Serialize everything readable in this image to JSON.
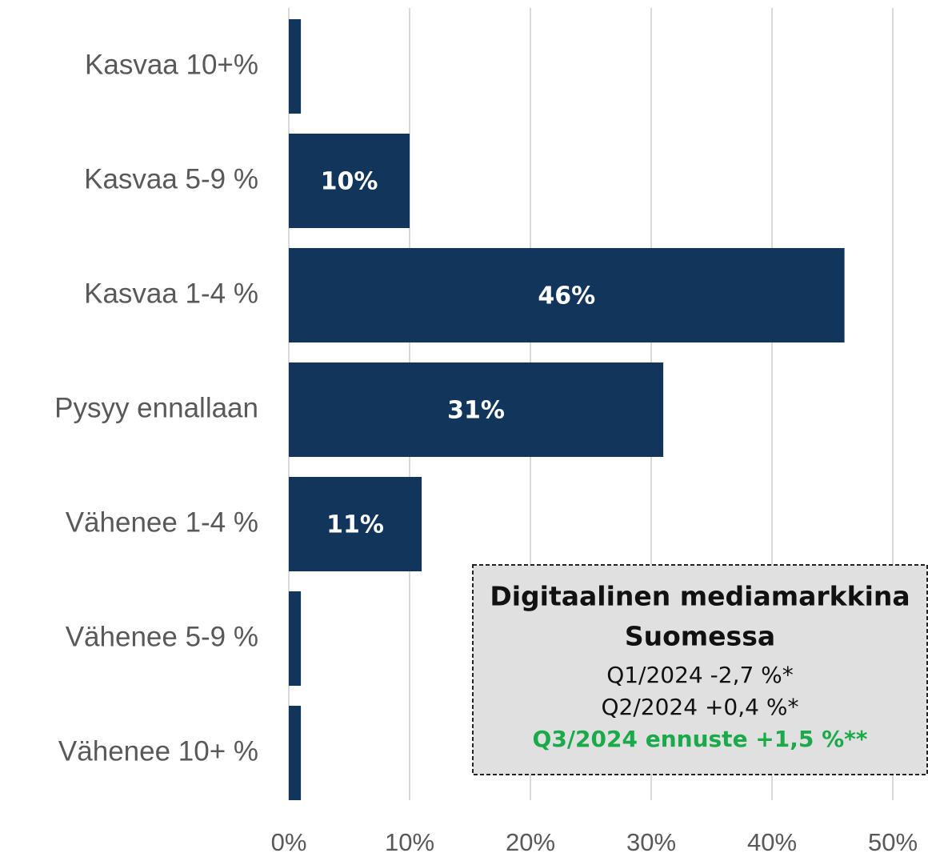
{
  "chart_data": {
    "type": "barh",
    "categories": [
      "Kasvaa 10+%",
      "Kasvaa 5-9 %",
      "Kasvaa 1-4 %",
      "Pysyy ennallaan",
      "Vähenee 1-4 %",
      "Vähenee 5-9 %",
      "Vähenee 10+ %"
    ],
    "values": [
      1,
      10,
      46,
      31,
      11,
      1,
      1
    ],
    "value_labels": [
      null,
      "10%",
      "46%",
      "31%",
      "11%",
      null,
      null
    ],
    "color": "#12355b",
    "xlim": [
      0,
      50
    ],
    "xticks": [
      {
        "value": 0,
        "label": "0%"
      },
      {
        "value": 10,
        "label": "10%"
      },
      {
        "value": 20,
        "label": "20%"
      },
      {
        "value": 30,
        "label": "30%"
      },
      {
        "value": 40,
        "label": "40%"
      },
      {
        "value": 50,
        "label": "50%"
      }
    ],
    "grid": true,
    "annotation": {
      "title": [
        "Digitaalinen mediamarkkina",
        "Suomessa"
      ],
      "lines": [
        "Q1/2024 -2,7 %*",
        "Q2/2024 +0,4 %*",
        "Q3/2024 ennuste +1,5 %**"
      ],
      "highlight_color": "#1aaa4a"
    }
  }
}
